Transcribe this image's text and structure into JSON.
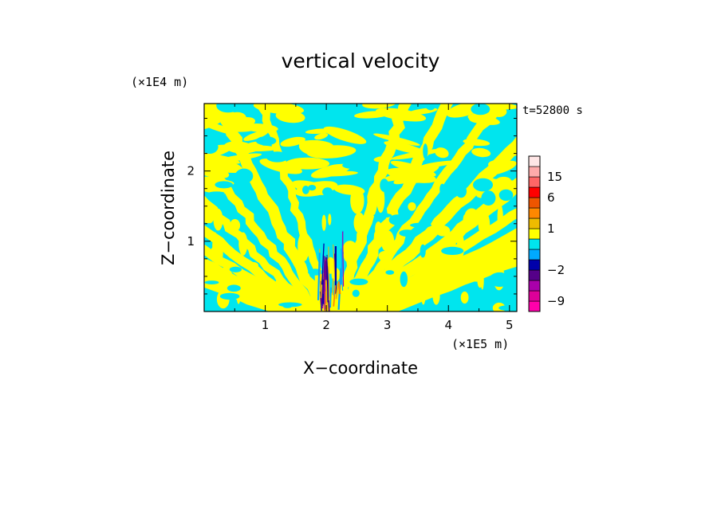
{
  "chart_data": {
    "type": "heatmap",
    "title": "vertical velocity",
    "xlabel": "X−coordinate",
    "ylabel": "Z−coordinate",
    "x_unit": "(×1E5 m)",
    "y_unit": "(×1E4 m)",
    "time_label": "t=52800 s",
    "xlim": [
      0,
      5.12
    ],
    "ylim": [
      0,
      2.96
    ],
    "x_ticks": [
      1,
      2,
      3,
      4,
      5
    ],
    "y_ticks": [
      1,
      2
    ],
    "x_tick_labels": [
      "1",
      "2",
      "3",
      "4",
      "5"
    ],
    "y_tick_labels": [
      "1",
      "2"
    ],
    "grid": false,
    "colorbar": {
      "levels": [
        -12,
        -9,
        -6,
        -4,
        -2,
        -1,
        0,
        0.5,
        1,
        2,
        4,
        6,
        10,
        15,
        20,
        30
      ],
      "colors": [
        "#ff00aa",
        "#dd0099",
        "#aa00aa",
        "#550088",
        "#0000aa",
        "#00aaff",
        "#00e5ee",
        "#ffff00",
        "#eebb00",
        "#ff8800",
        "#ee5500",
        "#ff0000",
        "#ff6666",
        "#ffaaaa",
        "#ffe6e6"
      ],
      "tick_values": [
        15,
        6,
        1,
        -2,
        -9
      ],
      "tick_labels": [
        "15",
        "6",
        "1",
        "−2",
        "−9"
      ]
    },
    "field_summary": {
      "dominant_colors": [
        "#00e5ee",
        "#ffff00"
      ],
      "min_color": "#0000aa",
      "note": "interleaved positive (yellow) and negative (cyan) tilted bands, V-shaped pattern centered near x=2.1, strongest values near ground at x~2"
    }
  },
  "colors": {
    "positive": "#ffff00",
    "negative": "#00e5ee",
    "strong_negative": "#0000aa",
    "frame": "#000000"
  }
}
